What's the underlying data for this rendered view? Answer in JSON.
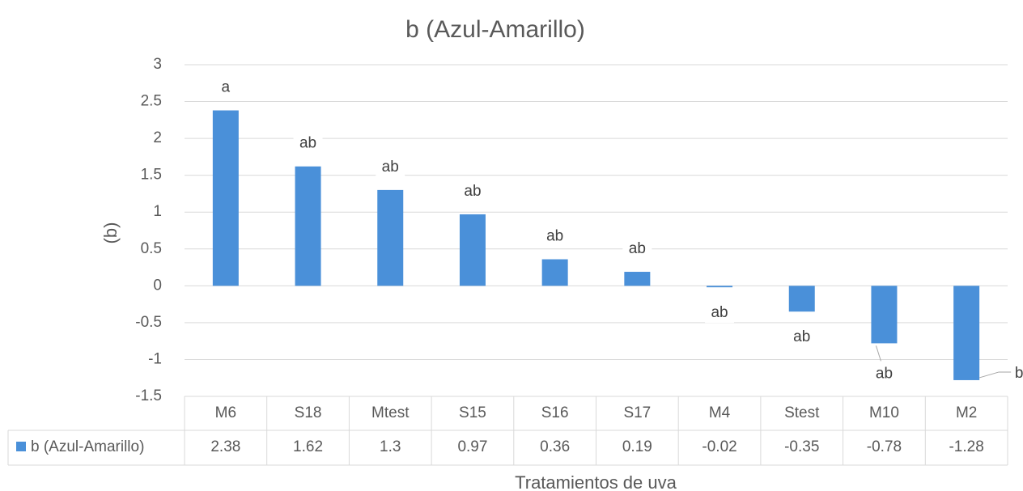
{
  "chart_data": {
    "type": "bar",
    "title": "b (Azul-Amarillo)",
    "categories": [
      "M6",
      "S18",
      "Mtest",
      "S15",
      "S16",
      "S17",
      "M4",
      "Stest",
      "M10",
      "M2"
    ],
    "series": [
      {
        "name": "b (Azul-Amarillo)",
        "color": "#4a90d9",
        "values": [
          2.38,
          1.62,
          1.3,
          0.97,
          0.36,
          0.19,
          -0.02,
          -0.35,
          -0.78,
          -1.28
        ]
      }
    ],
    "annotations": [
      "a",
      "ab",
      "ab",
      "ab",
      "ab",
      "ab",
      "ab",
      "ab",
      "ab",
      "b"
    ],
    "x_label": "Tratamientos de uva",
    "y_label": "(b)",
    "ylim": [
      -1.5,
      3
    ],
    "yticks": [
      -1.5,
      -1,
      -0.5,
      0,
      0.5,
      1,
      1.5,
      2,
      2.5,
      3
    ],
    "grid": true,
    "data_table": true
  }
}
